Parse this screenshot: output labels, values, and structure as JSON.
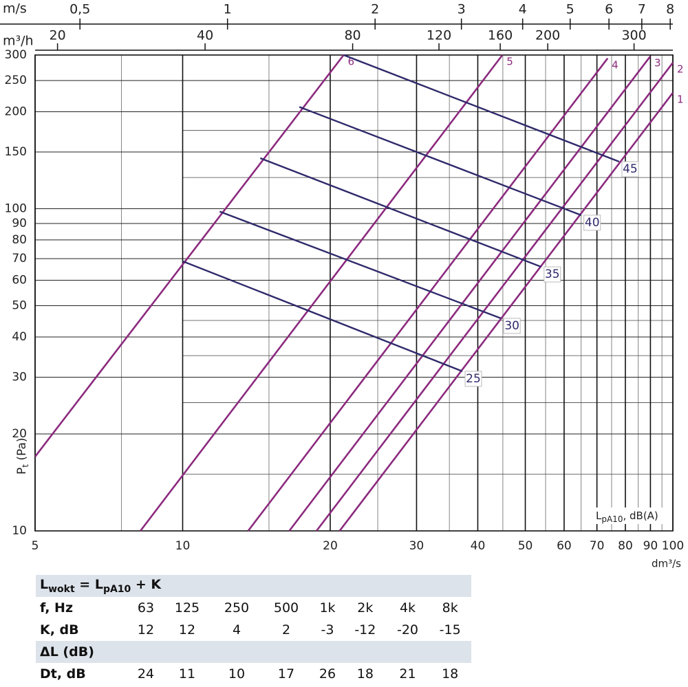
{
  "chart_data": {
    "type": "line",
    "log_x": true,
    "log_y": true,
    "grid": true,
    "xlim": [
      5,
      100
    ],
    "ylim": [
      10,
      300
    ],
    "xticks": [
      5,
      10,
      20,
      30,
      40,
      50,
      60,
      70,
      80,
      90,
      100
    ],
    "xminor": [
      7.5,
      15,
      25,
      35,
      45,
      55,
      65,
      75,
      85,
      95
    ],
    "yticks": [
      10,
      20,
      30,
      40,
      50,
      60,
      70,
      80,
      90,
      100,
      150,
      200,
      250,
      300
    ],
    "yminor": [
      15,
      25,
      35,
      45,
      125,
      175
    ],
    "x_label": "dm³/s",
    "y_label": [
      "P",
      "t",
      " (Pa)"
    ],
    "top_axes": [
      {
        "label": "m/s",
        "xlim": [
          0.405,
          8.1
        ],
        "xticks": [
          {
            "value": 0.5,
            "label": "0,5"
          },
          1,
          2,
          3,
          4,
          5,
          6,
          7,
          8
        ]
      },
      {
        "label": "m³/h",
        "xlim": [
          18,
          360
        ],
        "xticks": [
          20,
          40,
          80,
          120,
          160,
          200,
          300
        ]
      }
    ],
    "series": [
      {
        "name": "1",
        "color": "#8b2a7e",
        "x": [
          20.9,
          100
        ],
        "values": [
          10,
          229
        ]
      },
      {
        "name": "2",
        "color": "#8b2a7e",
        "x": [
          18.75,
          100
        ],
        "values": [
          10,
          284
        ]
      },
      {
        "name": "3",
        "color": "#8b2a7e",
        "x": [
          16.5,
          89.9
        ],
        "values": [
          10,
          297
        ]
      },
      {
        "name": "4",
        "color": "#8b2a7e",
        "x": [
          13.6,
          73.6
        ],
        "values": [
          10,
          293
        ]
      },
      {
        "name": "5",
        "color": "#8b2a7e",
        "x": [
          8.2,
          44.9
        ],
        "values": [
          10,
          300
        ]
      },
      {
        "name": "6",
        "color": "#8b2a7e",
        "x": [
          5,
          21.3
        ],
        "values": [
          17,
          300
        ]
      }
    ],
    "sound_lines": {
      "color": "#2e2a6b",
      "label": [
        "L",
        "pA10",
        ", dB(A)"
      ],
      "series": [
        {
          "name": "25",
          "x": [
            10,
            37.2
          ],
          "values": [
            68.7,
            31.3
          ]
        },
        {
          "name": "30",
          "x": [
            11.9,
            44.6
          ],
          "values": [
            98,
            45.7
          ]
        },
        {
          "name": "35",
          "x": [
            14.4,
            53.9
          ],
          "values": [
            143.5,
            66
          ]
        },
        {
          "name": "40",
          "x": [
            17.3,
            65
          ],
          "values": [
            207,
            95.5
          ]
        },
        {
          "name": "45",
          "x": [
            21.3,
            77.7
          ],
          "values": [
            300,
            140
          ]
        }
      ]
    }
  },
  "table": {
    "formula": [
      "L",
      "wokt",
      " = L",
      "pA10",
      " + K"
    ],
    "rows": [
      [
        "f, Hz",
        "63",
        "125",
        "250",
        "500",
        "1k",
        "2k",
        "4k",
        "8k"
      ],
      [
        "K, dB",
        "12",
        "12",
        "4",
        "2",
        "-3",
        "-12",
        "-20",
        "-15"
      ]
    ],
    "section": "ΔL (dB)",
    "rows2": [
      [
        "Dt, dB",
        "24",
        "11",
        "10",
        "17",
        "26",
        "18",
        "21",
        "18"
      ]
    ]
  }
}
